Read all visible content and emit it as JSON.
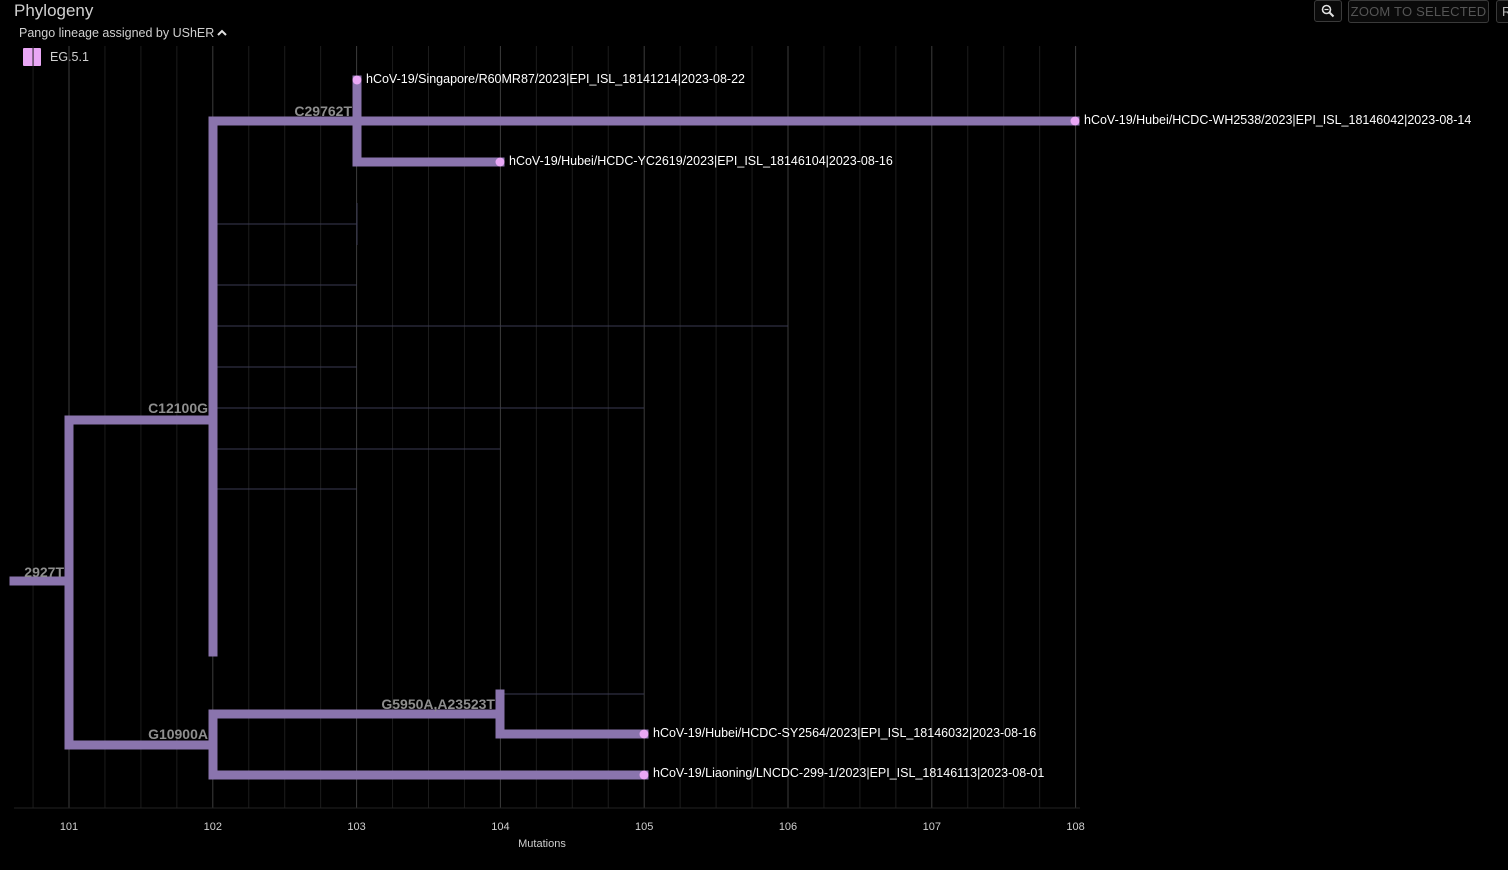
{
  "panel": {
    "title": "Phylogeny",
    "zoom_to_selected_label": "ZOOM TO SELECTED",
    "reset_label": "R"
  },
  "legend": {
    "title": "Pango lineage assigned by UShER",
    "items": [
      {
        "label": "EG.5.1",
        "color": "#e9a7f5"
      }
    ]
  },
  "colors": {
    "branch": "#8a74ad",
    "tip": "#e9a7f5",
    "background": "#000000"
  },
  "axis": {
    "title": "Mutations",
    "range": [
      100.6,
      108.3
    ],
    "ticks": [
      101,
      102,
      103,
      104,
      105,
      106,
      107,
      108
    ]
  },
  "tree": {
    "branch_labels": [
      {
        "text": "C29762T"
      },
      {
        "text": "C12100G"
      },
      {
        "text": "2927T"
      },
      {
        "text": "G5950A,A23523T"
      },
      {
        "text": "G10900A"
      }
    ],
    "tips": [
      {
        "label": "hCoV-19/Singapore/R60MR87/2023|EPI_ISL_18141214|2023-08-22",
        "mutations": 103
      },
      {
        "label": "hCoV-19/Hubei/HCDC-WH2538/2023|EPI_ISL_18146042|2023-08-14",
        "mutations": 108
      },
      {
        "label": "hCoV-19/Hubei/HCDC-YC2619/2023|EPI_ISL_18146104|2023-08-16",
        "mutations": 104
      },
      {
        "label": "hCoV-19/Hubei/HCDC-SY2564/2023|EPI_ISL_18146032|2023-08-16",
        "mutations": 105
      },
      {
        "label": "hCoV-19/Liaoning/LNCDC-299-1/2023|EPI_ISL_18146113|2023-08-01",
        "mutations": 105
      }
    ]
  }
}
